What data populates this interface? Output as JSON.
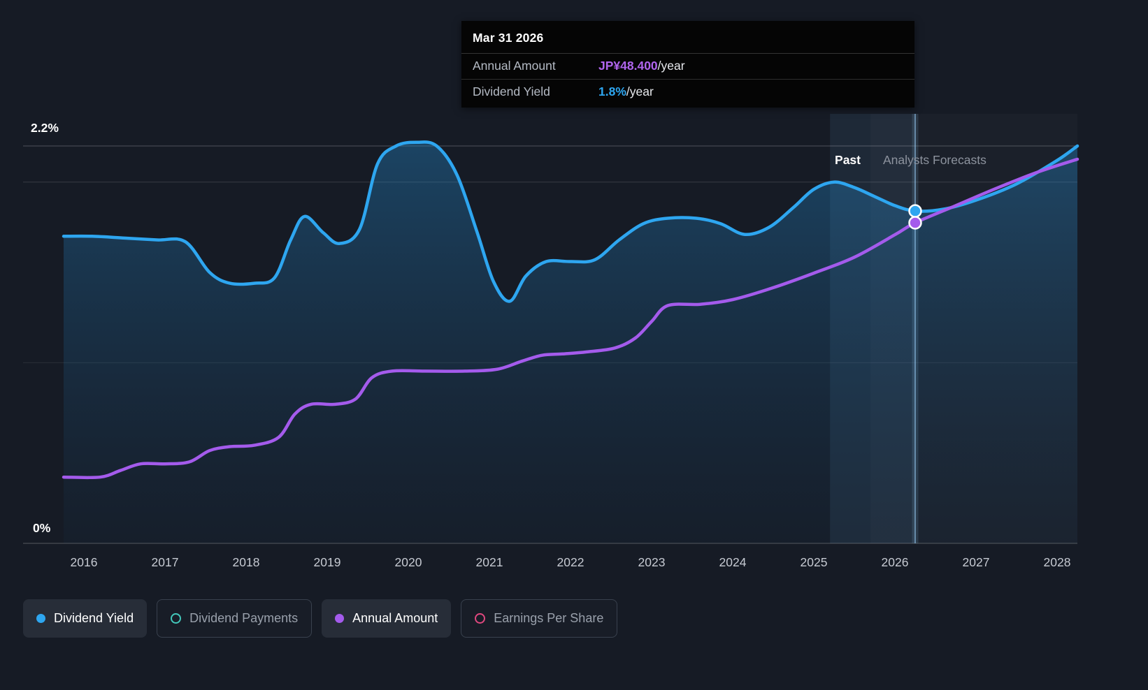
{
  "page": {
    "background": "#161b25"
  },
  "tooltip": {
    "date": "Mar 31 2026",
    "rows": [
      {
        "label": "Annual Amount",
        "value": "JP¥48.400",
        "suffix": "/year",
        "color": "#b065ee"
      },
      {
        "label": "Dividend Yield",
        "value": "1.8%",
        "suffix": "/year",
        "color": "#2ea6f0"
      }
    ]
  },
  "axis": {
    "y_top_label": "2.2%",
    "y_bottom_label": "0%",
    "years": [
      2016,
      2017,
      2018,
      2019,
      2020,
      2021,
      2022,
      2023,
      2024,
      2025,
      2026,
      2027,
      2028
    ]
  },
  "sections": {
    "past_label": "Past",
    "forecast_label": "Analysts Forecasts"
  },
  "legend": [
    {
      "label": "Dividend Yield",
      "marker": "filled",
      "color": "#2ea6f0",
      "active": true
    },
    {
      "label": "Dividend Payments",
      "marker": "outline",
      "color": "#43c8bb",
      "active": false
    },
    {
      "label": "Annual Amount",
      "marker": "filled",
      "color": "#a45bec",
      "active": true
    },
    {
      "label": "Earnings Per Share",
      "marker": "outline",
      "color": "#e0487f",
      "active": false
    }
  ],
  "chart_data": {
    "type": "line",
    "title": "Dividend Yield and Annual Amount — history with analysts forecasts",
    "x_range": [
      2015.75,
      2028.25
    ],
    "x_ticks": [
      2016,
      2017,
      2018,
      2019,
      2020,
      2021,
      2022,
      2023,
      2024,
      2025,
      2026,
      2027,
      2028
    ],
    "y_gridlines_pct": [
      0,
      1,
      2,
      2.2
    ],
    "past_forecast_boundary_x": 2025.7,
    "hover_band": {
      "x_start": 2025.2,
      "x_end": 2026.25
    },
    "marker_x": 2026.25,
    "series": [
      {
        "name": "Dividend Yield",
        "unit": "%",
        "color": "#2ea6f0",
        "area": true,
        "ylim": [
          0,
          2.2
        ],
        "x": [
          2015.75,
          2016.1,
          2016.5,
          2016.9,
          2017.25,
          2017.55,
          2017.8,
          2018.1,
          2018.35,
          2018.55,
          2018.72,
          2018.95,
          2019.15,
          2019.4,
          2019.62,
          2019.85,
          2020.1,
          2020.35,
          2020.6,
          2020.85,
          2021.05,
          2021.25,
          2021.45,
          2021.7,
          2022.0,
          2022.3,
          2022.6,
          2022.9,
          2023.2,
          2023.55,
          2023.85,
          2024.15,
          2024.45,
          2024.75,
          2025.0,
          2025.25,
          2025.5,
          2025.75,
          2026.0,
          2026.25,
          2026.6,
          2027.0,
          2027.5,
          2028.0,
          2028.25
        ],
        "values": [
          1.7,
          1.7,
          1.69,
          1.68,
          1.67,
          1.5,
          1.44,
          1.44,
          1.47,
          1.68,
          1.81,
          1.72,
          1.66,
          1.74,
          2.1,
          2.2,
          2.22,
          2.2,
          2.04,
          1.72,
          1.45,
          1.34,
          1.48,
          1.56,
          1.56,
          1.57,
          1.68,
          1.77,
          1.8,
          1.8,
          1.77,
          1.71,
          1.75,
          1.86,
          1.96,
          2.0,
          1.97,
          1.92,
          1.87,
          1.84,
          1.85,
          1.9,
          1.99,
          2.12,
          2.2
        ]
      },
      {
        "name": "Annual Amount",
        "unit": "JP¥ per share / year",
        "color": "#a45bec",
        "area": false,
        "ylim": [
          0,
          60
        ],
        "x": [
          2015.75,
          2016.2,
          2016.45,
          2016.7,
          2017.0,
          2017.3,
          2017.55,
          2017.8,
          2018.1,
          2018.4,
          2018.6,
          2018.8,
          2019.1,
          2019.35,
          2019.55,
          2019.8,
          2020.2,
          2020.7,
          2021.1,
          2021.4,
          2021.65,
          2021.9,
          2022.2,
          2022.55,
          2022.8,
          2023.0,
          2023.2,
          2023.6,
          2024.0,
          2024.5,
          2025.0,
          2025.5,
          2026.0,
          2026.25,
          2026.75,
          2027.25,
          2027.75,
          2028.25
        ],
        "values": [
          10,
          10,
          11,
          12,
          12,
          12.3,
          14,
          14.6,
          14.8,
          16,
          19.5,
          21,
          21,
          21.8,
          25,
          26,
          26,
          26,
          26.3,
          27.5,
          28.4,
          28.6,
          28.9,
          29.5,
          31,
          33.5,
          35.9,
          36.1,
          36.8,
          38.6,
          40.8,
          43.2,
          46.6,
          48.4,
          51,
          53.6,
          56,
          58
        ]
      }
    ]
  }
}
